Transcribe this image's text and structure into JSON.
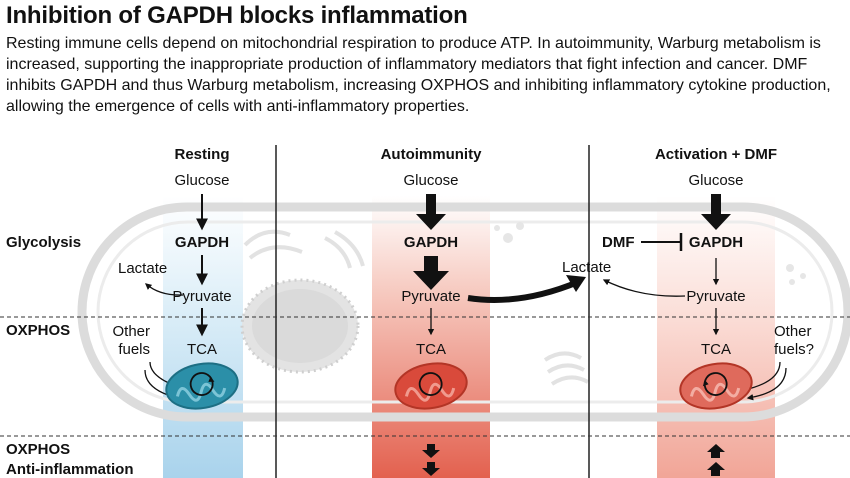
{
  "header": {
    "title": "Inhibition of GAPDH blocks inflammation",
    "description": "Resting immune cells depend on mitochondrial respiration to produce ATP. In autoimmunity, Warburg metabolism is increased, supporting the inappropriate production of inflammatory mediators that fight infection and cancer. DMF inhibits GAPDH and thus Warburg metabolism, increasing OXPHOS and inhibiting inflammatory cytokine production, allowing the emergence of cells with anti-inflammatory properties."
  },
  "rows": {
    "glycolysis": "Glycolysis",
    "oxphos": "OXPHOS",
    "oxphos2": "OXPHOS",
    "anti": "Anti-inflammation"
  },
  "panels": {
    "resting": {
      "heading": "Resting",
      "glucose": "Glucose",
      "gapdh": "GAPDH",
      "lactate": "Lactate",
      "pyruvate": "Pyruvate",
      "other_fuels_1": "Other",
      "other_fuels_2": "fuels",
      "tca": "TCA"
    },
    "autoimmunity": {
      "heading": "Autoimmunity",
      "glucose": "Glucose",
      "gapdh": "GAPDH",
      "pyruvate": "Pyruvate",
      "tca": "TCA",
      "lactate": "Lactate"
    },
    "activation": {
      "heading": "Activation + DMF",
      "glucose": "Glucose",
      "dmf": "DMF",
      "gapdh": "GAPDH",
      "pyruvate": "Pyruvate",
      "tca": "TCA",
      "other_fuels_1": "Other",
      "other_fuels_2": "fuels?"
    }
  },
  "colors": {
    "resting_gradient": "#b9ddf0",
    "inflamed_gradient": "#e3614f",
    "mito_resting": "#2b8fa8",
    "mito_inflamed": "#d94a3b",
    "cell_outline": "#d9d9d9"
  }
}
